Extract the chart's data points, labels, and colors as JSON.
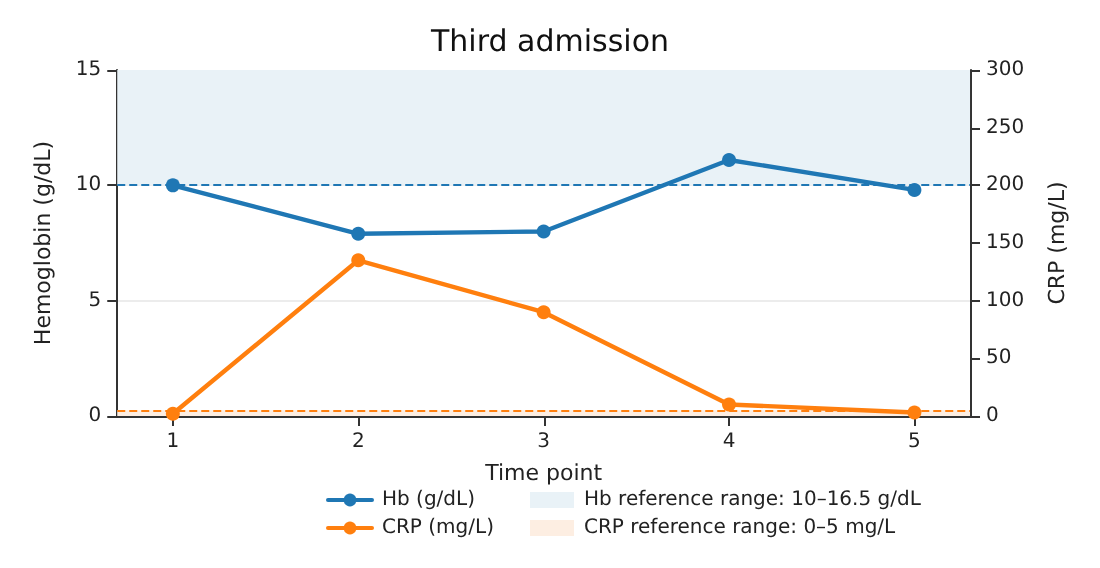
{
  "chart_data": {
    "type": "line",
    "title": "Third admission",
    "xlabel": "Time point",
    "ylabel": "Hemoglobin (g/dL)",
    "y2label": "CRP (mg/L)",
    "x": [
      1,
      2,
      3,
      4,
      5
    ],
    "xlim": [
      0.7,
      5.3
    ],
    "xticks": [
      1,
      2,
      3,
      4,
      5
    ],
    "ylim": [
      0,
      15
    ],
    "yticks": [
      0,
      5,
      10,
      15
    ],
    "y2lim": [
      0,
      300
    ],
    "y2ticks": [
      0,
      50,
      100,
      150,
      200,
      250,
      300
    ],
    "series": [
      {
        "name": "Hb (g/dL)",
        "color": "#1f77b4",
        "values": [
          10,
          7.9,
          8.0,
          11.1,
          9.8
        ]
      },
      {
        "name": "CRP (mg/L)",
        "color": "#ff7f0e",
        "values": [
          2,
          135,
          90,
          10,
          3
        ],
        "axis": "y2"
      }
    ],
    "bands": [
      {
        "axis": "y",
        "from": 10,
        "to": 16.5,
        "label": "Hb reference range: 10–16.5 g/dL",
        "color": "#e9f2f7"
      },
      {
        "axis": "y2",
        "from": 0,
        "to": 5,
        "label": "CRP reference range: 0–5 mg/L",
        "color": "#fdeee2"
      }
    ],
    "ref_lines": [
      {
        "axis": "y",
        "value": 10,
        "color": "#1f77b4",
        "line_style": "dashed"
      },
      {
        "axis": "y2",
        "value": 5,
        "color": "#ff7f0e",
        "line_style": "dashed"
      }
    ],
    "grid": "y",
    "legend": "bottom",
    "marker": "circle",
    "line_style": "solid"
  }
}
